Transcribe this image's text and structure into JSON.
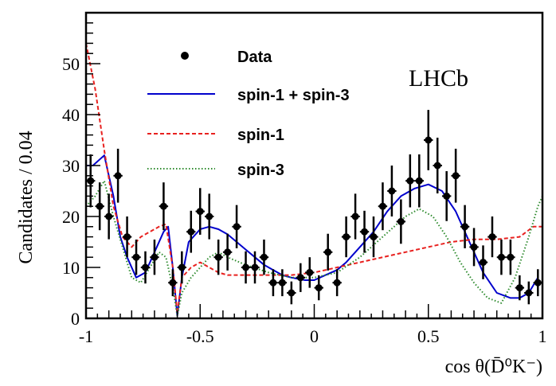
{
  "chart_data": {
    "type": "scatter",
    "title": "",
    "xlabel": "cos θ(D̄⁰K⁻)",
    "xlabel_parts": {
      "prefix": "cos ",
      "theta": "θ",
      "open": "(",
      "D": "D",
      "D_sup": "0",
      "K": "K",
      "K_sup": "−",
      "close": ")"
    },
    "ylabel": "Candidates / 0.04",
    "xlim": [
      -1,
      1
    ],
    "ylim": [
      0,
      60
    ],
    "xticks": [
      {
        "v": -1,
        "label": "-1"
      },
      {
        "v": -0.5,
        "label": "-0.5"
      },
      {
        "v": 0,
        "label": "0"
      },
      {
        "v": 0.5,
        "label": "0.5"
      },
      {
        "v": 1,
        "label": "1"
      }
    ],
    "yticks": [
      {
        "v": 0,
        "label": "0"
      },
      {
        "v": 10,
        "label": "10"
      },
      {
        "v": 20,
        "label": "20"
      },
      {
        "v": 30,
        "label": "30"
      },
      {
        "v": 40,
        "label": "40"
      },
      {
        "v": 50,
        "label": "50"
      }
    ],
    "annotation": "LHCb",
    "legend_placement": "top-center",
    "data": {
      "name": "Data",
      "x": [
        -0.98,
        -0.94,
        -0.9,
        -0.86,
        -0.82,
        -0.78,
        -0.74,
        -0.7,
        -0.66,
        -0.62,
        -0.58,
        -0.54,
        -0.5,
        -0.46,
        -0.42,
        -0.38,
        -0.34,
        -0.3,
        -0.26,
        -0.22,
        -0.18,
        -0.14,
        -0.1,
        -0.06,
        -0.02,
        0.02,
        0.06,
        0.1,
        0.14,
        0.18,
        0.22,
        0.26,
        0.3,
        0.34,
        0.38,
        0.42,
        0.46,
        0.5,
        0.54,
        0.58,
        0.62,
        0.66,
        0.7,
        0.74,
        0.78,
        0.82,
        0.86,
        0.9,
        0.94,
        0.98
      ],
      "y": [
        27,
        22,
        20,
        28,
        16,
        12,
        10,
        12,
        22,
        7,
        10,
        17,
        21,
        20,
        12,
        13,
        18,
        10,
        10,
        12,
        7,
        7,
        5,
        8,
        9,
        6,
        13,
        7,
        16,
        20,
        17,
        16,
        22,
        25,
        19,
        27,
        27,
        35,
        30,
        24,
        28,
        18,
        14,
        11,
        16,
        12,
        12,
        6,
        5,
        7
      ]
    },
    "series": [
      {
        "name": "spin-1 + spin-3",
        "color": "#0000cc",
        "style": "solid",
        "x": [
          -1,
          -0.97,
          -0.92,
          -0.88,
          -0.85,
          -0.82,
          -0.78,
          -0.74,
          -0.7,
          -0.66,
          -0.64,
          -0.62,
          -0.6,
          -0.58,
          -0.55,
          -0.5,
          -0.46,
          -0.42,
          -0.38,
          -0.34,
          -0.3,
          -0.26,
          -0.22,
          -0.18,
          -0.14,
          -0.1,
          -0.04,
          0.0,
          0.05,
          0.1,
          0.14,
          0.2,
          0.26,
          0.32,
          0.38,
          0.44,
          0.5,
          0.56,
          0.62,
          0.68,
          0.74,
          0.8,
          0.86,
          0.9,
          0.94,
          0.98
        ],
        "y": [
          30,
          30,
          32,
          24,
          16,
          12,
          8,
          9,
          13,
          17,
          18,
          10,
          0.5,
          8,
          15,
          17.5,
          18,
          17.5,
          16.5,
          15,
          13.5,
          12,
          10.5,
          9.5,
          8.5,
          8,
          7.5,
          7.5,
          8.5,
          9.5,
          11,
          14,
          17,
          21,
          24,
          25.5,
          26.3,
          25,
          21,
          15,
          9,
          5,
          4,
          4,
          5,
          8
        ]
      },
      {
        "name": "spin-1",
        "color": "#e8211f",
        "style": "dashed",
        "x": [
          -1,
          -0.96,
          -0.92,
          -0.88,
          -0.84,
          -0.8,
          -0.76,
          -0.72,
          -0.68,
          -0.65,
          -0.62,
          -0.6,
          -0.58,
          -0.54,
          -0.5,
          -0.46,
          -0.42,
          -0.38,
          -0.3,
          -0.2,
          -0.1,
          0,
          0.1,
          0.2,
          0.3,
          0.4,
          0.5,
          0.6,
          0.7,
          0.8,
          0.9,
          0.96,
          1
        ],
        "y": [
          54,
          45,
          33,
          22,
          16,
          14,
          16,
          17,
          18,
          18.5,
          10,
          1,
          8,
          10,
          11,
          10,
          9,
          8.5,
          8.5,
          8.5,
          8.5,
          9,
          10,
          11,
          12,
          13,
          14,
          15,
          15.5,
          15.5,
          16,
          18,
          18
        ]
      },
      {
        "name": "spin-3",
        "color": "#2e8b2e",
        "style": "dotted",
        "x": [
          -1,
          -0.96,
          -0.92,
          -0.88,
          -0.84,
          -0.8,
          -0.76,
          -0.72,
          -0.68,
          -0.65,
          -0.62,
          -0.6,
          -0.58,
          -0.54,
          -0.5,
          -0.46,
          -0.42,
          -0.38,
          -0.3,
          -0.2,
          -0.1,
          0,
          0.1,
          0.2,
          0.3,
          0.4,
          0.46,
          0.52,
          0.58,
          0.64,
          0.7,
          0.76,
          0.82,
          0.88,
          0.94,
          0.98,
          1
        ],
        "y": [
          22,
          24,
          27,
          20,
          14,
          8,
          7,
          10,
          13,
          12,
          6,
          0.5,
          5,
          8,
          10,
          12,
          13,
          12,
          10.5,
          9,
          8,
          8,
          9,
          12,
          16,
          20,
          21.5,
          20,
          16,
          11,
          7,
          4,
          3,
          8,
          16,
          22,
          24
        ]
      }
    ]
  }
}
